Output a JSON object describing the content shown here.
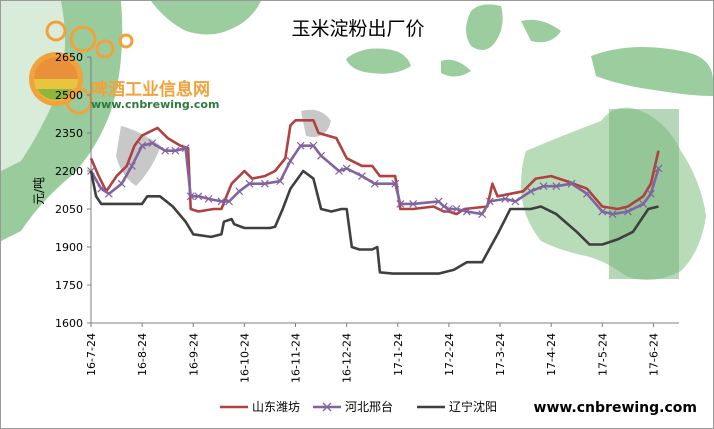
{
  "chart_data": {
    "type": "line",
    "title": "玉米淀粉出厂价",
    "ylabel": "元/吨",
    "ylim": [
      1600,
      2650
    ],
    "yticks": [
      1600,
      1750,
      1900,
      2050,
      2200,
      2350,
      2500,
      2650
    ],
    "xticks": [
      "16-7-24",
      "16-8-24",
      "16-9-24",
      "16-10-24",
      "16-11-24",
      "16-12-24",
      "17-1-24",
      "17-2-24",
      "17-3-24",
      "17-4-24",
      "17-5-24",
      "17-6-24"
    ],
    "legend_position": "bottom",
    "grid": false,
    "series": [
      {
        "name": "山东潍坊",
        "color": "#b0413e",
        "marker": "none",
        "points": [
          [
            0,
            2250
          ],
          [
            0.15,
            2180
          ],
          [
            0.3,
            2120
          ],
          [
            0.5,
            2180
          ],
          [
            0.7,
            2220
          ],
          [
            0.85,
            2300
          ],
          [
            1.0,
            2340
          ],
          [
            1.3,
            2370
          ],
          [
            1.5,
            2330
          ],
          [
            1.75,
            2300
          ],
          [
            1.9,
            2290
          ],
          [
            1.95,
            2050
          ],
          [
            2.1,
            2040
          ],
          [
            2.4,
            2050
          ],
          [
            2.55,
            2050
          ],
          [
            2.75,
            2150
          ],
          [
            3.0,
            2200
          ],
          [
            3.15,
            2170
          ],
          [
            3.4,
            2180
          ],
          [
            3.6,
            2200
          ],
          [
            3.8,
            2250
          ],
          [
            3.9,
            2380
          ],
          [
            4.0,
            2400
          ],
          [
            4.35,
            2400
          ],
          [
            4.45,
            2350
          ],
          [
            4.8,
            2330
          ],
          [
            5.0,
            2250
          ],
          [
            5.3,
            2220
          ],
          [
            5.5,
            2220
          ],
          [
            5.65,
            2180
          ],
          [
            5.95,
            2180
          ],
          [
            6.05,
            2050
          ],
          [
            6.3,
            2050
          ],
          [
            6.7,
            2060
          ],
          [
            6.9,
            2040
          ],
          [
            7.0,
            2040
          ],
          [
            7.15,
            2030
          ],
          [
            7.3,
            2050
          ],
          [
            7.75,
            2060
          ],
          [
            7.85,
            2150
          ],
          [
            7.95,
            2100
          ],
          [
            8.2,
            2110
          ],
          [
            8.45,
            2120
          ],
          [
            8.7,
            2170
          ],
          [
            9.0,
            2180
          ],
          [
            9.3,
            2160
          ],
          [
            9.7,
            2130
          ],
          [
            10.0,
            2060
          ],
          [
            10.3,
            2050
          ],
          [
            10.5,
            2060
          ],
          [
            10.8,
            2100
          ],
          [
            10.95,
            2150
          ],
          [
            11.1,
            2280
          ]
        ]
      },
      {
        "name": "河北邢台",
        "color": "#8064a2",
        "marker": "x",
        "points": [
          [
            0,
            2200
          ],
          [
            0.2,
            2130
          ],
          [
            0.35,
            2110
          ],
          [
            0.6,
            2150
          ],
          [
            0.8,
            2220
          ],
          [
            1.0,
            2300
          ],
          [
            1.2,
            2310
          ],
          [
            1.45,
            2280
          ],
          [
            1.65,
            2280
          ],
          [
            1.85,
            2290
          ],
          [
            1.95,
            2100
          ],
          [
            2.1,
            2100
          ],
          [
            2.3,
            2090
          ],
          [
            2.55,
            2080
          ],
          [
            2.7,
            2080
          ],
          [
            2.9,
            2120
          ],
          [
            3.1,
            2150
          ],
          [
            3.4,
            2150
          ],
          [
            3.7,
            2160
          ],
          [
            3.9,
            2240
          ],
          [
            4.1,
            2300
          ],
          [
            4.35,
            2300
          ],
          [
            4.5,
            2260
          ],
          [
            4.85,
            2200
          ],
          [
            5.0,
            2210
          ],
          [
            5.3,
            2180
          ],
          [
            5.55,
            2150
          ],
          [
            5.95,
            2150
          ],
          [
            6.05,
            2070
          ],
          [
            6.3,
            2070
          ],
          [
            6.8,
            2080
          ],
          [
            6.9,
            2060
          ],
          [
            7.0,
            2050
          ],
          [
            7.15,
            2050
          ],
          [
            7.35,
            2040
          ],
          [
            7.65,
            2030
          ],
          [
            7.8,
            2080
          ],
          [
            8.1,
            2090
          ],
          [
            8.3,
            2080
          ],
          [
            8.6,
            2120
          ],
          [
            8.85,
            2140
          ],
          [
            9.1,
            2140
          ],
          [
            9.4,
            2150
          ],
          [
            9.7,
            2110
          ],
          [
            10.0,
            2040
          ],
          [
            10.2,
            2030
          ],
          [
            10.5,
            2040
          ],
          [
            10.8,
            2070
          ],
          [
            10.95,
            2110
          ],
          [
            11.1,
            2210
          ]
        ]
      },
      {
        "name": "辽宁沈阳",
        "color": "#3f3f3f",
        "marker": "none",
        "points": [
          [
            0,
            2200
          ],
          [
            0.1,
            2100
          ],
          [
            0.2,
            2070
          ],
          [
            0.5,
            2070
          ],
          [
            0.8,
            2070
          ],
          [
            1.0,
            2070
          ],
          [
            1.1,
            2100
          ],
          [
            1.35,
            2100
          ],
          [
            1.6,
            2060
          ],
          [
            1.85,
            2000
          ],
          [
            2.0,
            1950
          ],
          [
            2.35,
            1940
          ],
          [
            2.55,
            1950
          ],
          [
            2.6,
            2000
          ],
          [
            2.75,
            2010
          ],
          [
            2.8,
            1990
          ],
          [
            3.0,
            1975
          ],
          [
            3.5,
            1975
          ],
          [
            3.6,
            1980
          ],
          [
            3.75,
            2050
          ],
          [
            3.9,
            2130
          ],
          [
            4.15,
            2200
          ],
          [
            4.35,
            2170
          ],
          [
            4.5,
            2050
          ],
          [
            4.7,
            2040
          ],
          [
            4.9,
            2050
          ],
          [
            5.0,
            2050
          ],
          [
            5.1,
            1900
          ],
          [
            5.25,
            1890
          ],
          [
            5.5,
            1890
          ],
          [
            5.6,
            1900
          ],
          [
            5.65,
            1800
          ],
          [
            5.9,
            1795
          ],
          [
            6.3,
            1795
          ],
          [
            6.8,
            1795
          ],
          [
            7.1,
            1810
          ],
          [
            7.35,
            1840
          ],
          [
            7.65,
            1840
          ],
          [
            7.95,
            1950
          ],
          [
            8.2,
            2050
          ],
          [
            8.6,
            2050
          ],
          [
            8.8,
            2060
          ],
          [
            9.1,
            2030
          ],
          [
            9.5,
            1960
          ],
          [
            9.75,
            1910
          ],
          [
            10.0,
            1910
          ],
          [
            10.3,
            1930
          ],
          [
            10.6,
            1960
          ],
          [
            10.9,
            2050
          ],
          [
            11.1,
            2060
          ]
        ]
      }
    ]
  },
  "watermark": {
    "name": "啤酒工业信息网",
    "url": "www.cnbrewing.com"
  },
  "footer_url": "www.cnbrewing.com",
  "colors": {
    "map_green": "#86c38a",
    "map_gray": "#c8c8c8",
    "map_dark": "#4e8a4f"
  }
}
